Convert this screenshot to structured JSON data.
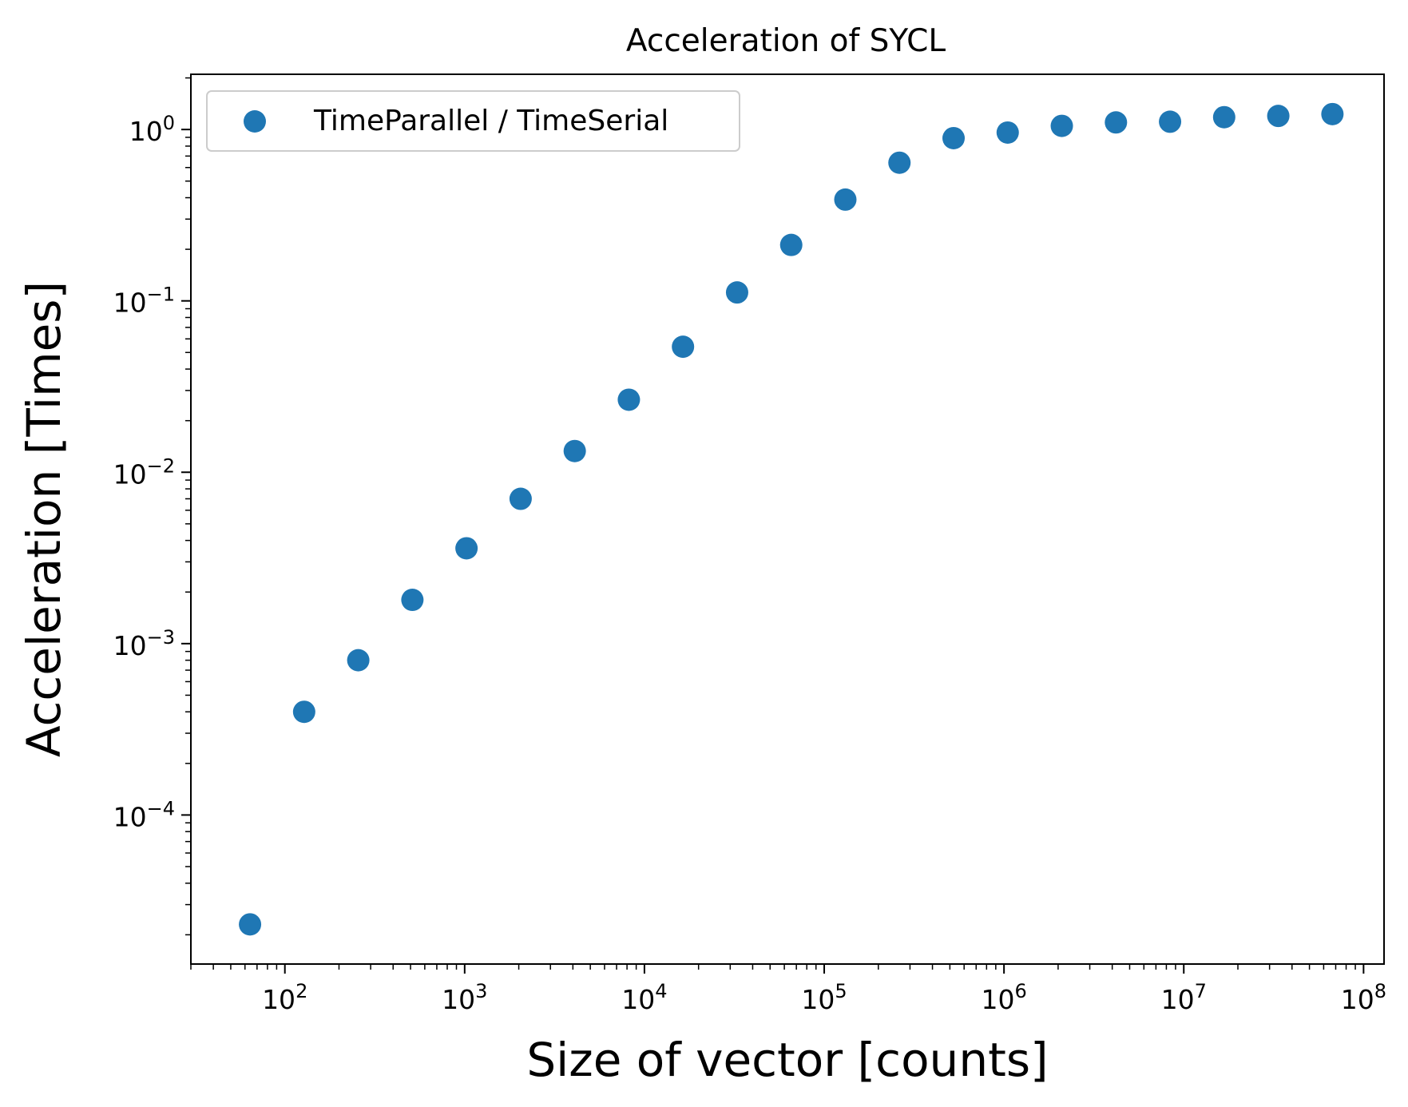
{
  "chart_data": {
    "type": "scatter",
    "title": "Acceleration of SYCL",
    "xlabel": "Size of vector [counts]",
    "ylabel": "Acceleration [Times]",
    "xscale": "log",
    "yscale": "log",
    "xlim": [
      30,
      130000000
    ],
    "ylim": [
      1.35e-05,
      2.1
    ],
    "x_ticks": [
      {
        "value": 100,
        "base": "10",
        "exp": "2"
      },
      {
        "value": 1000,
        "base": "10",
        "exp": "3"
      },
      {
        "value": 10000,
        "base": "10",
        "exp": "4"
      },
      {
        "value": 100000,
        "base": "10",
        "exp": "5"
      },
      {
        "value": 1000000,
        "base": "10",
        "exp": "6"
      },
      {
        "value": 10000000,
        "base": "10",
        "exp": "7"
      },
      {
        "value": 100000000,
        "base": "10",
        "exp": "8"
      }
    ],
    "y_ticks": [
      {
        "value": 0.0001,
        "base": "10",
        "exp": "−4"
      },
      {
        "value": 0.001,
        "base": "10",
        "exp": "−3"
      },
      {
        "value": 0.01,
        "base": "10",
        "exp": "−2"
      },
      {
        "value": 0.1,
        "base": "10",
        "exp": "−1"
      },
      {
        "value": 1,
        "base": "10",
        "exp": "0"
      }
    ],
    "grid": false,
    "legend_position": "top-left",
    "series": [
      {
        "name": "TimeParallel / TimeSerial",
        "color": "#1f77b4",
        "marker": "circle",
        "x": [
          64,
          128,
          256,
          512,
          1024,
          2048,
          4096,
          8192,
          16384,
          32768,
          65536,
          131072,
          262144,
          524288,
          1048576,
          2097152,
          4194304,
          8388608,
          16777216,
          33554432,
          67108864
        ],
        "y": [
          2.3e-05,
          0.0004,
          0.0008,
          0.0018,
          0.0036,
          0.007,
          0.0133,
          0.0265,
          0.054,
          0.112,
          0.212,
          0.39,
          0.64,
          0.89,
          0.96,
          1.05,
          1.1,
          1.11,
          1.18,
          1.2,
          1.23
        ]
      }
    ]
  }
}
